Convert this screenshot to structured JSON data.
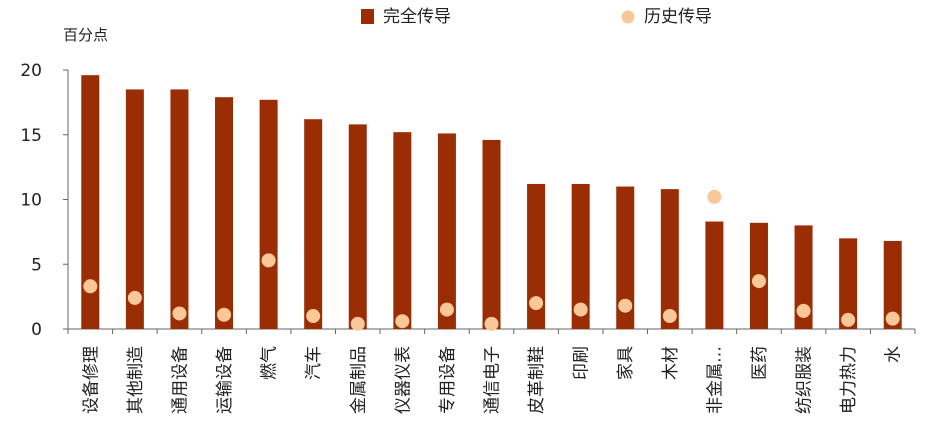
{
  "chart_data": {
    "type": "bar",
    "unit_label": "百分点",
    "categories": [
      "设备修理",
      "其他制造",
      "通用设备",
      "运输设备",
      "燃气",
      "汽车",
      "金属制品",
      "仪器仪表",
      "专用设备",
      "通信电子",
      "皮革制鞋",
      "印刷",
      "家具",
      "木材",
      "非金属…",
      "医药",
      "纺织服装",
      "电力热力",
      "水"
    ],
    "series": [
      {
        "name": "完全传导",
        "kind": "bar",
        "color": "#9B2D05",
        "values": [
          19.6,
          18.5,
          18.5,
          17.9,
          17.7,
          16.2,
          15.8,
          15.2,
          15.1,
          14.6,
          11.2,
          11.2,
          11.0,
          10.8,
          8.3,
          8.2,
          8.0,
          7.0,
          6.8
        ]
      },
      {
        "name": "历史传导",
        "kind": "scatter",
        "color": "#FAC898",
        "values": [
          3.3,
          2.4,
          1.2,
          1.1,
          5.3,
          1.0,
          0.4,
          0.6,
          1.5,
          0.4,
          2.0,
          1.5,
          1.8,
          1.0,
          10.2,
          3.7,
          1.4,
          0.7,
          0.8
        ]
      }
    ],
    "yticks": [
      0,
      5,
      10,
      15,
      20
    ],
    "ylim": [
      0,
      20
    ],
    "grid": false,
    "legend_position": "top"
  }
}
